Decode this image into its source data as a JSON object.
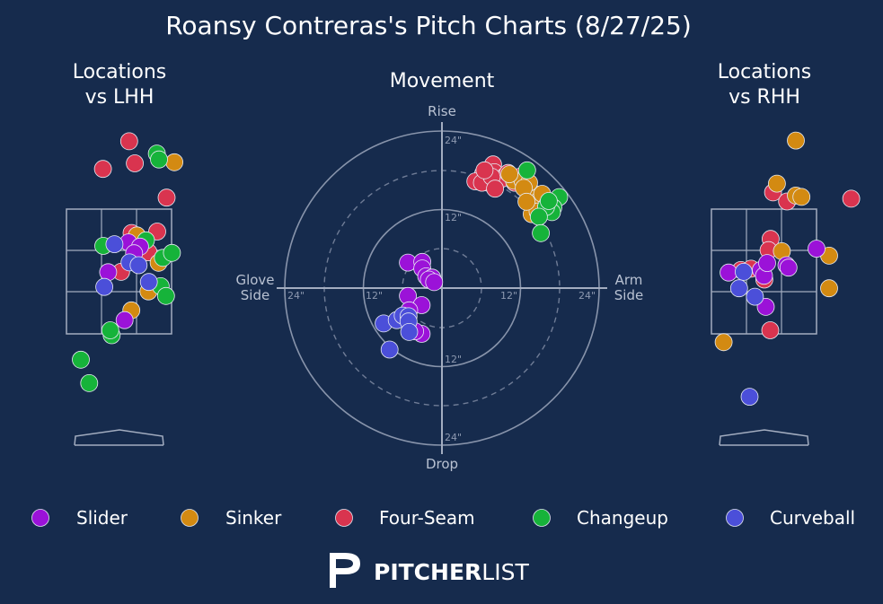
{
  "title": "Roansy Contreras's Pitch Charts (8/27/25)",
  "panels": {
    "lhh_title": [
      "Locations",
      "vs LHH"
    ],
    "movement_title": "Movement",
    "rhh_title": [
      "Locations",
      "vs RHH"
    ]
  },
  "movement_axis": {
    "top": "Rise",
    "bottom": "Drop",
    "left": [
      "Glove",
      "Side"
    ],
    "right": [
      "Arm",
      "Side"
    ],
    "ring_labels": {
      "up_24": "24\"",
      "up_12": "12\"",
      "down_12": "12\"",
      "down_24": "24\"",
      "left_24": "24\"",
      "left_12": "12\"",
      "right_12": "12\"",
      "right_24": "24\""
    }
  },
  "legend": [
    {
      "name": "Slider",
      "color": "#9b12d8"
    },
    {
      "name": "Sinker",
      "color": "#d38a12"
    },
    {
      "name": "Four-Seam",
      "color": "#d9344f"
    },
    {
      "name": "Changeup",
      "color": "#16b33a"
    },
    {
      "name": "Curveball",
      "color": "#4b4fd9"
    }
  ],
  "brand": {
    "bold": "PITCHER",
    "light": "LIST"
  },
  "chart_data": [
    {
      "type": "scatter",
      "title": "Movement",
      "units": "inches",
      "xlim": [
        -24,
        24
      ],
      "ylim": [
        -24,
        24
      ],
      "series": [
        {
          "name": "Four-Seam",
          "points": [
            [
              7.8,
              18.9
            ],
            [
              6.3,
              17.5
            ],
            [
              8.0,
              17.7
            ],
            [
              9.7,
              17.2
            ],
            [
              7.3,
              16.0
            ],
            [
              8.6,
              16.5
            ],
            [
              5.1,
              16.3
            ],
            [
              6.1,
              16.1
            ],
            [
              9.1,
              16.7
            ],
            [
              7.6,
              17.0
            ],
            [
              10.1,
              17.6
            ],
            [
              11.9,
              17.0
            ],
            [
              8.1,
              15.2
            ],
            [
              11.1,
              16.1
            ],
            [
              6.5,
              18.0
            ]
          ]
        },
        {
          "name": "Sinker",
          "points": [
            [
              11.0,
              16.4
            ],
            [
              13.8,
              14.6
            ],
            [
              12.3,
              16.4
            ],
            [
              14.9,
              13.5
            ],
            [
              15.3,
              14.4
            ],
            [
              13.7,
              11.3
            ],
            [
              14.6,
              11.7
            ],
            [
              13.3,
              16.1
            ],
            [
              10.3,
              17.4
            ],
            [
              12.5,
              15.3
            ],
            [
              12.9,
              13.2
            ]
          ]
        },
        {
          "name": "Changeup",
          "points": [
            [
              13.0,
              18.0
            ],
            [
              17.9,
              13.9
            ],
            [
              16.1,
              12.8
            ],
            [
              17.0,
              12.3
            ],
            [
              16.8,
              11.6
            ],
            [
              15.9,
              12.4
            ],
            [
              14.8,
              10.9
            ],
            [
              15.1,
              8.4
            ],
            [
              16.3,
              13.3
            ]
          ]
        },
        {
          "name": "Slider",
          "points": [
            [
              -5.2,
              3.9
            ],
            [
              -3.0,
              4.0
            ],
            [
              -3.0,
              3.0
            ],
            [
              -2.4,
              1.8
            ],
            [
              -1.5,
              1.6
            ],
            [
              -2.0,
              1.3
            ],
            [
              -1.2,
              0.9
            ],
            [
              -5.2,
              -1.2
            ],
            [
              -3.1,
              -2.6
            ],
            [
              -5.0,
              -3.4
            ],
            [
              -3.1,
              -7.0
            ],
            [
              -4.1,
              -6.6
            ]
          ]
        },
        {
          "name": "Curveball",
          "points": [
            [
              -8.9,
              -5.4
            ],
            [
              -6.9,
              -4.9
            ],
            [
              -6.0,
              -4.2
            ],
            [
              -5.1,
              -4.3
            ],
            [
              -5.1,
              -5.1
            ],
            [
              -5.0,
              -6.7
            ],
            [
              -8.0,
              -9.4
            ]
          ]
        }
      ]
    },
    {
      "type": "scatter",
      "title": "Locations vs LHH",
      "units": "feet (plate location, catcher view)",
      "series": [
        {
          "name": "Four-Seam",
          "points": [
            [
              0.29,
              4.47
            ],
            [
              -0.46,
              3.68
            ],
            [
              0.45,
              3.84
            ],
            [
              1.36,
              2.86
            ],
            [
              0.36,
              1.85
            ],
            [
              1.09,
              1.89
            ],
            [
              0.84,
              1.3
            ],
            [
              0.06,
              0.74
            ]
          ]
        },
        {
          "name": "Sinker",
          "points": [
            [
              1.58,
              3.87
            ],
            [
              0.51,
              1.78
            ],
            [
              1.13,
              1.0
            ],
            [
              0.84,
              0.18
            ],
            [
              0.35,
              -0.36
            ]
          ]
        },
        {
          "name": "Changeup",
          "points": [
            [
              1.08,
              4.12
            ],
            [
              1.14,
              3.95
            ],
            [
              -0.45,
              1.48
            ],
            [
              0.77,
              1.64
            ],
            [
              1.25,
              1.14
            ],
            [
              1.51,
              1.28
            ],
            [
              1.19,
              0.33
            ],
            [
              1.34,
              0.05
            ],
            [
              -0.21,
              -1.07
            ],
            [
              -1.09,
              -1.77
            ],
            [
              -0.25,
              -0.93
            ],
            [
              -0.85,
              -2.44
            ]
          ]
        },
        {
          "name": "Slider",
          "points": [
            [
              0.27,
              1.58
            ],
            [
              0.6,
              1.46
            ],
            [
              0.43,
              1.27
            ],
            [
              -0.31,
              0.73
            ],
            [
              0.16,
              -0.64
            ]
          ]
        },
        {
          "name": "Curveball",
          "points": [
            [
              -0.13,
              1.53
            ],
            [
              0.3,
              1.01
            ],
            [
              0.56,
              0.93
            ],
            [
              0.85,
              0.45
            ],
            [
              -0.42,
              0.31
            ]
          ]
        }
      ]
    },
    {
      "type": "scatter",
      "title": "Locations vs RHH",
      "units": "feet (plate location, catcher view)",
      "series": [
        {
          "name": "Four-Seam",
          "points": [
            [
              0.26,
              3.01
            ],
            [
              0.66,
              2.75
            ],
            [
              2.49,
              2.83
            ],
            [
              0.19,
              1.68
            ],
            [
              0.13,
              1.36
            ],
            [
              0.01,
              0.52
            ],
            [
              -0.66,
              0.79
            ],
            [
              -0.37,
              0.83
            ],
            [
              0.18,
              -0.93
            ]
          ]
        },
        {
          "name": "Sinker",
          "points": [
            [
              0.91,
              4.49
            ],
            [
              0.37,
              3.26
            ],
            [
              0.91,
              2.92
            ],
            [
              1.07,
              2.88
            ],
            [
              0.51,
              1.33
            ],
            [
              1.86,
              1.2
            ],
            [
              1.86,
              0.27
            ],
            [
              -1.15,
              -1.27
            ]
          ]
        },
        {
          "name": "Changeup",
          "points": []
        },
        {
          "name": "Slider",
          "points": [
            [
              1.5,
              1.4
            ],
            [
              -0.09,
              0.79
            ],
            [
              0.0,
              0.63
            ],
            [
              0.09,
              0.99
            ],
            [
              0.05,
              -0.26
            ],
            [
              0.64,
              0.93
            ],
            [
              0.7,
              0.86
            ],
            [
              -1.01,
              0.72
            ]
          ]
        },
        {
          "name": "Curveball",
          "points": [
            [
              -0.58,
              0.74
            ],
            [
              -0.71,
              0.27
            ],
            [
              -0.26,
              0.03
            ],
            [
              -0.41,
              -2.83
            ]
          ]
        }
      ]
    }
  ]
}
